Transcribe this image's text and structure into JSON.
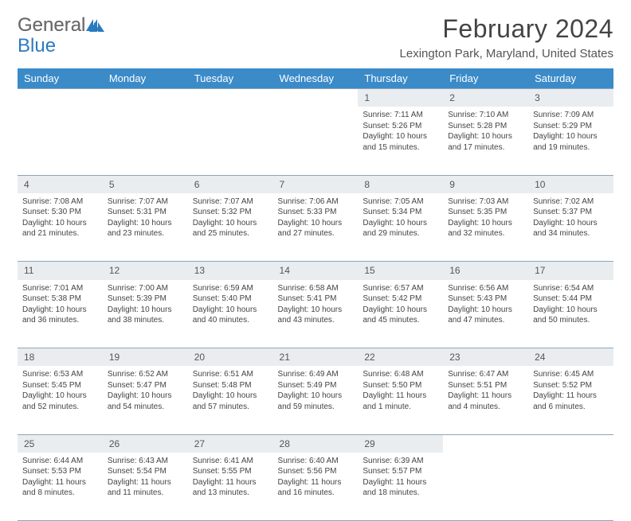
{
  "brand": {
    "part1": "General",
    "part2": "Blue",
    "accent_color": "#2b7bbf"
  },
  "title": "February 2024",
  "location": "Lexington Park, Maryland, United States",
  "header_bg": "#3b8bc9",
  "daynum_bg": "#e9edf0",
  "border_color": "#8fa5b8",
  "weekdays": [
    "Sunday",
    "Monday",
    "Tuesday",
    "Wednesday",
    "Thursday",
    "Friday",
    "Saturday"
  ],
  "weeks": [
    [
      null,
      null,
      null,
      null,
      {
        "n": "1",
        "sunrise": "7:11 AM",
        "sunset": "5:26 PM",
        "daylight": "10 hours and 15 minutes."
      },
      {
        "n": "2",
        "sunrise": "7:10 AM",
        "sunset": "5:28 PM",
        "daylight": "10 hours and 17 minutes."
      },
      {
        "n": "3",
        "sunrise": "7:09 AM",
        "sunset": "5:29 PM",
        "daylight": "10 hours and 19 minutes."
      }
    ],
    [
      {
        "n": "4",
        "sunrise": "7:08 AM",
        "sunset": "5:30 PM",
        "daylight": "10 hours and 21 minutes."
      },
      {
        "n": "5",
        "sunrise": "7:07 AM",
        "sunset": "5:31 PM",
        "daylight": "10 hours and 23 minutes."
      },
      {
        "n": "6",
        "sunrise": "7:07 AM",
        "sunset": "5:32 PM",
        "daylight": "10 hours and 25 minutes."
      },
      {
        "n": "7",
        "sunrise": "7:06 AM",
        "sunset": "5:33 PM",
        "daylight": "10 hours and 27 minutes."
      },
      {
        "n": "8",
        "sunrise": "7:05 AM",
        "sunset": "5:34 PM",
        "daylight": "10 hours and 29 minutes."
      },
      {
        "n": "9",
        "sunrise": "7:03 AM",
        "sunset": "5:35 PM",
        "daylight": "10 hours and 32 minutes."
      },
      {
        "n": "10",
        "sunrise": "7:02 AM",
        "sunset": "5:37 PM",
        "daylight": "10 hours and 34 minutes."
      }
    ],
    [
      {
        "n": "11",
        "sunrise": "7:01 AM",
        "sunset": "5:38 PM",
        "daylight": "10 hours and 36 minutes."
      },
      {
        "n": "12",
        "sunrise": "7:00 AM",
        "sunset": "5:39 PM",
        "daylight": "10 hours and 38 minutes."
      },
      {
        "n": "13",
        "sunrise": "6:59 AM",
        "sunset": "5:40 PM",
        "daylight": "10 hours and 40 minutes."
      },
      {
        "n": "14",
        "sunrise": "6:58 AM",
        "sunset": "5:41 PM",
        "daylight": "10 hours and 43 minutes."
      },
      {
        "n": "15",
        "sunrise": "6:57 AM",
        "sunset": "5:42 PM",
        "daylight": "10 hours and 45 minutes."
      },
      {
        "n": "16",
        "sunrise": "6:56 AM",
        "sunset": "5:43 PM",
        "daylight": "10 hours and 47 minutes."
      },
      {
        "n": "17",
        "sunrise": "6:54 AM",
        "sunset": "5:44 PM",
        "daylight": "10 hours and 50 minutes."
      }
    ],
    [
      {
        "n": "18",
        "sunrise": "6:53 AM",
        "sunset": "5:45 PM",
        "daylight": "10 hours and 52 minutes."
      },
      {
        "n": "19",
        "sunrise": "6:52 AM",
        "sunset": "5:47 PM",
        "daylight": "10 hours and 54 minutes."
      },
      {
        "n": "20",
        "sunrise": "6:51 AM",
        "sunset": "5:48 PM",
        "daylight": "10 hours and 57 minutes."
      },
      {
        "n": "21",
        "sunrise": "6:49 AM",
        "sunset": "5:49 PM",
        "daylight": "10 hours and 59 minutes."
      },
      {
        "n": "22",
        "sunrise": "6:48 AM",
        "sunset": "5:50 PM",
        "daylight": "11 hours and 1 minute."
      },
      {
        "n": "23",
        "sunrise": "6:47 AM",
        "sunset": "5:51 PM",
        "daylight": "11 hours and 4 minutes."
      },
      {
        "n": "24",
        "sunrise": "6:45 AM",
        "sunset": "5:52 PM",
        "daylight": "11 hours and 6 minutes."
      }
    ],
    [
      {
        "n": "25",
        "sunrise": "6:44 AM",
        "sunset": "5:53 PM",
        "daylight": "11 hours and 8 minutes."
      },
      {
        "n": "26",
        "sunrise": "6:43 AM",
        "sunset": "5:54 PM",
        "daylight": "11 hours and 11 minutes."
      },
      {
        "n": "27",
        "sunrise": "6:41 AM",
        "sunset": "5:55 PM",
        "daylight": "11 hours and 13 minutes."
      },
      {
        "n": "28",
        "sunrise": "6:40 AM",
        "sunset": "5:56 PM",
        "daylight": "11 hours and 16 minutes."
      },
      {
        "n": "29",
        "sunrise": "6:39 AM",
        "sunset": "5:57 PM",
        "daylight": "11 hours and 18 minutes."
      },
      null,
      null
    ]
  ],
  "labels": {
    "sunrise": "Sunrise:",
    "sunset": "Sunset:",
    "daylight": "Daylight:"
  }
}
